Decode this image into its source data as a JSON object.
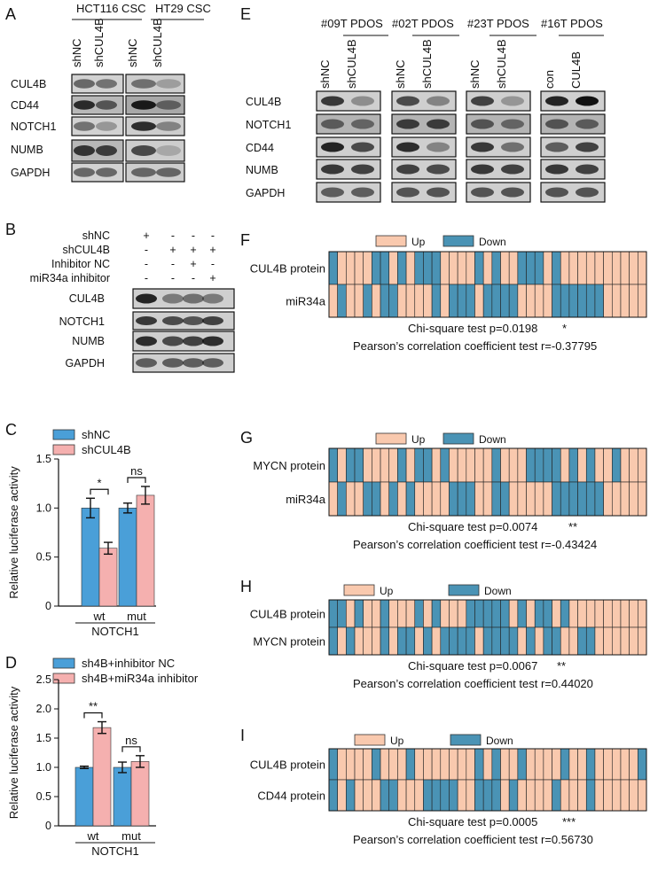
{
  "colors": {
    "up": "#F9C9AE",
    "down": "#4A93B5",
    "bar_blue": "#4A9FD8",
    "bar_pink": "#F5B0AF"
  },
  "panel_letters": [
    "A",
    "B",
    "C",
    "D",
    "E",
    "F",
    "G",
    "H",
    "I"
  ],
  "panelA": {
    "groups": [
      "HCT116 CSC",
      "HT29 CSC"
    ],
    "lanes": [
      "shNC",
      "shCUL4B",
      "shNC",
      "shCUL4B"
    ],
    "rows": [
      "CUL4B",
      "CD44",
      "NOTCH1",
      "NUMB",
      "GAPDH"
    ]
  },
  "panelB": {
    "conditions": [
      {
        "label": "shNC",
        "marks": [
          "+",
          "-",
          "-",
          "-"
        ]
      },
      {
        "label": "shCUL4B",
        "marks": [
          "-",
          "+",
          "+",
          "+"
        ]
      },
      {
        "label": "Inhibitor NC",
        "marks": [
          "-",
          "-",
          "+",
          "-"
        ]
      },
      {
        "label": "miR34a inhibitor",
        "marks": [
          "-",
          "-",
          "-",
          "+"
        ]
      }
    ],
    "rows": [
      "CUL4B",
      "NOTCH1",
      "NUMB",
      "GAPDH"
    ]
  },
  "panelE": {
    "groups": [
      "#09T PDOS",
      "#02T PDOS",
      "#23T PDOS",
      "#16T PDOS"
    ],
    "lanes": [
      [
        "shNC",
        "shCUL4B"
      ],
      [
        "shNC",
        "shCUL4B"
      ],
      [
        "shNC",
        "shCUL4B"
      ],
      [
        "con",
        "CUL4B"
      ]
    ],
    "rows": [
      "CUL4B",
      "NOTCH1",
      "CD44",
      "NUMB",
      "GAPDH"
    ]
  },
  "heatmaps": [
    {
      "legend_up": "Up",
      "legend_down": "Down",
      "rows": [
        "CUL4B protein",
        "miR34a"
      ],
      "pattern": [
        "1000011010111000010100111010000000000",
        "0100101100001011101111000011111100000"
      ],
      "stat1": "Chi-square test  p=0.0198",
      "stat1_sig": "*",
      "stat2": "Pearson’s correlation coefficient test  r=-0.37795"
    },
    {
      "legend_up": "Up",
      "legend_down": "Down",
      "rows": [
        "MYCN protein",
        "miR34a"
      ],
      "pattern": [
        "1011000010110100000100011110101001000",
        "0100110101000011100110000011111100000"
      ],
      "stat1": "Chi-square test  p=0.0074",
      "stat1_sig": "**",
      "stat2": "Pearson’s correlation coefficient test  r=-0.43424"
    },
    {
      "legend_up": "Up",
      "legend_down": "Down",
      "rows": [
        "CUL4B protein",
        "MYCN protein"
      ],
      "pattern": [
        "1101001000101000111110101101000000000",
        "1010001011010111101111010110011000000"
      ],
      "stat1": "Chi-square test  p=0.0067",
      "stat1_sig": "**",
      "stat2": "Pearson’s correlation coefficient test  r=0.44020"
    },
    {
      "legend_up": "Up",
      "legend_down": "Down",
      "rows": [
        "CUL4B protein",
        "CD44 protein"
      ],
      "pattern": [
        "1000010001000000010100100001001000001",
        "1010001100011110011101000010001000000"
      ],
      "stat1": "Chi-square test  p=0.0005",
      "stat1_sig": "***",
      "stat2": "Pearson’s correlation coefficient test  r=0.56730"
    }
  ],
  "chart_data": [
    {
      "type": "bar",
      "panel": "C",
      "categories": [
        "wt",
        "mut"
      ],
      "group_label": "NOTCH1",
      "series": [
        {
          "name": "shNC",
          "values": [
            1.0,
            1.0
          ],
          "errors": [
            0.1,
            0.05
          ]
        },
        {
          "name": "shCUL4B",
          "values": [
            0.59,
            1.13
          ],
          "errors": [
            0.06,
            0.09
          ]
        }
      ],
      "ylabel": "Relative luciferase activity",
      "ylim": [
        0,
        1.5
      ],
      "yticks": [
        "0",
        "0.5",
        "1.0",
        "1.5"
      ],
      "significance": [
        "*",
        "ns"
      ]
    },
    {
      "type": "bar",
      "panel": "D",
      "categories": [
        "wt",
        "mut"
      ],
      "group_label": "NOTCH1",
      "series": [
        {
          "name": "sh4B+inhibitor NC",
          "values": [
            1.0,
            1.0
          ],
          "errors": [
            0.02,
            0.09
          ]
        },
        {
          "name": "sh4B+miR34a inhibitor",
          "values": [
            1.68,
            1.1
          ],
          "errors": [
            0.1,
            0.1
          ]
        }
      ],
      "ylabel": "Relative luciferase activity",
      "ylim": [
        0,
        2.5
      ],
      "yticks": [
        "0",
        "0.5",
        "1.0",
        "1.5",
        "2.0",
        "2.5"
      ],
      "significance": [
        "**",
        "ns"
      ]
    }
  ]
}
